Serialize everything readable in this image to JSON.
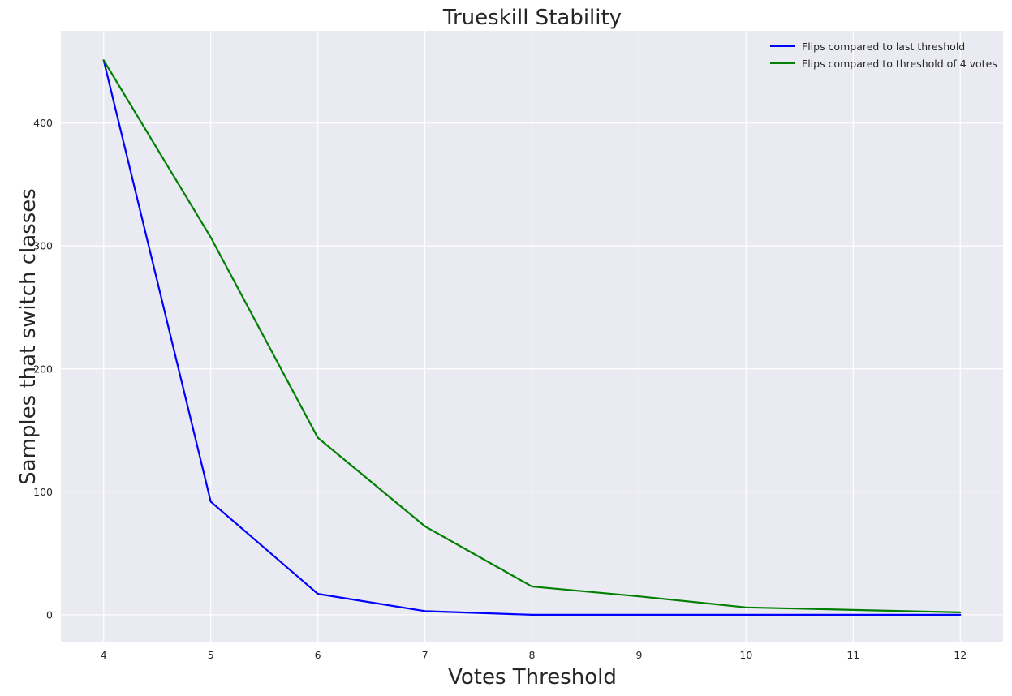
{
  "chart_data": {
    "type": "line",
    "title": "Trueskill Stability",
    "xlabel": "Votes Threshold",
    "ylabel": "Samples that switch classes",
    "x": [
      4,
      5,
      6,
      7,
      8,
      9,
      10,
      11,
      12
    ],
    "xlim": [
      3.6,
      12.4
    ],
    "ylim": [
      -22.5,
      475
    ],
    "xticks": [
      4,
      5,
      6,
      7,
      8,
      9,
      10,
      11,
      12
    ],
    "yticks": [
      0,
      100,
      200,
      300,
      400
    ],
    "grid": true,
    "background_color": "#EAEAF2",
    "legend_position": "top-right",
    "series": [
      {
        "name": "Flips compared to last threshold",
        "color": "#0000FF",
        "values": [
          451,
          92,
          17,
          3,
          0,
          0,
          0,
          0,
          0
        ]
      },
      {
        "name": "Flips compared to threshold of 4 votes",
        "color": "#008000",
        "values": [
          451,
          307,
          144,
          72,
          23,
          15,
          6,
          4,
          2
        ]
      }
    ]
  }
}
